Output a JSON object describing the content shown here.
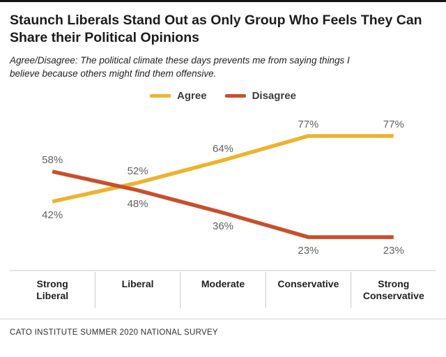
{
  "title": "Staunch Liberals Stand Out as Only Group Who Feels They Can Share their Political Opinions",
  "subtitle": "Agree/Disagree: The political climate these days prevents me from saying things I believe because others might find them offensive.",
  "footer": "CATO INSTITUTE SUMMER 2020 NATIONAL SURVEY",
  "chart_data": {
    "type": "line",
    "categories": [
      "Strong Liberal",
      "Liberal",
      "Moderate",
      "Conservative",
      "Strong Conservative"
    ],
    "category_lines": [
      [
        "Strong",
        "Liberal"
      ],
      [
        "Liberal"
      ],
      [
        "Moderate"
      ],
      [
        "Conservative"
      ],
      [
        "Strong",
        "Conservative"
      ]
    ],
    "series": [
      {
        "name": "Agree",
        "color": "#ECB32E",
        "values": [
          42,
          52,
          64,
          77,
          77
        ]
      },
      {
        "name": "Disagree",
        "color": "#C84F2C",
        "values": [
          58,
          48,
          36,
          23,
          23
        ]
      }
    ],
    "value_suffix": "%",
    "ylim": [
      0,
      100
    ],
    "grid": false,
    "legend_position": "top",
    "label_color": "#616161",
    "axis_color": "#c9c9c9",
    "category_color": "#1f1f1f"
  }
}
